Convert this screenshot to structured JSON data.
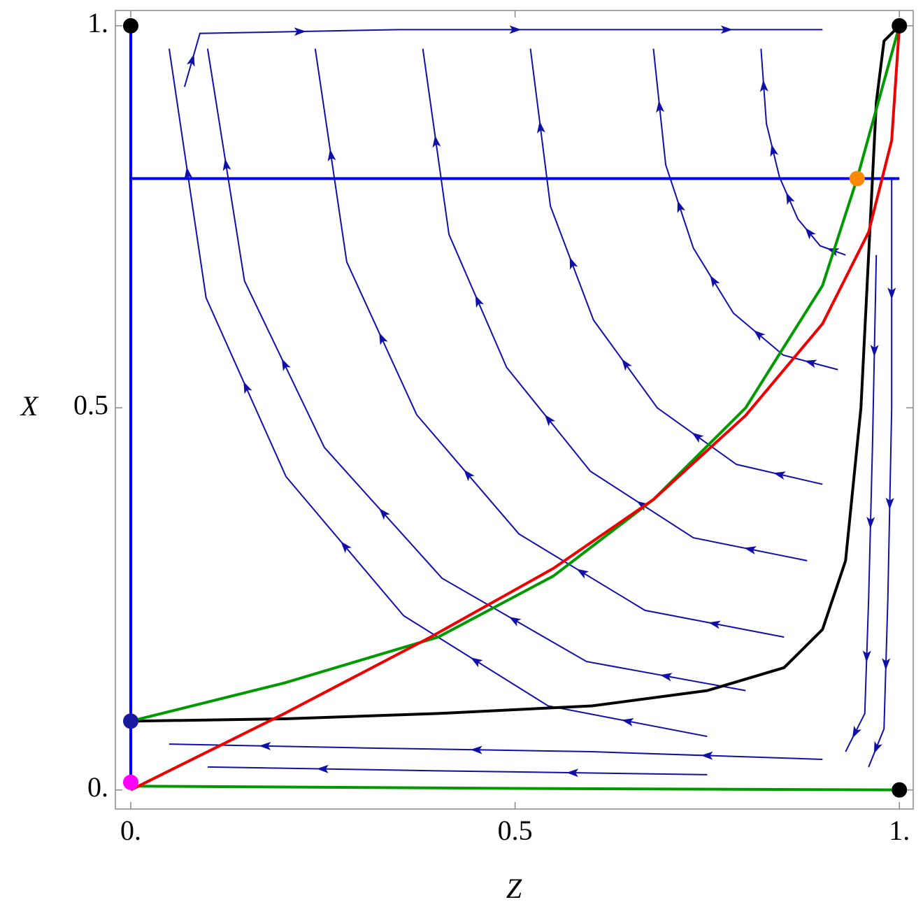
{
  "chart_data": {
    "type": "line",
    "xlabel": "Z",
    "ylabel": "X",
    "xlim": [
      -0.02,
      1.018
    ],
    "ylim": [
      -0.025,
      1.02
    ],
    "xticks": [
      {
        "value": 0,
        "label": "0."
      },
      0.5,
      {
        "value": 1,
        "label": "1."
      }
    ],
    "yticks": [
      {
        "value": 0,
        "label": "0."
      },
      0.5,
      {
        "value": 1,
        "label": "1."
      }
    ],
    "streamline_color": "#1010a8",
    "streamlines": [
      {
        "x": [
          0.93,
          0.897,
          0.868,
          0.844,
          0.827,
          0.82
        ],
        "values": [
          0.7,
          0.712,
          0.747,
          0.802,
          0.872,
          0.97
        ]
      },
      {
        "x": [
          0.92,
          0.849,
          0.784,
          0.732,
          0.696,
          0.68
        ],
        "values": [
          0.55,
          0.569,
          0.624,
          0.709,
          0.818,
          0.97
        ]
      },
      {
        "x": [
          0.9,
          0.788,
          0.685,
          0.602,
          0.546,
          0.52
        ],
        "values": [
          0.4,
          0.426,
          0.5,
          0.615,
          0.764,
          0.97
        ]
      },
      {
        "x": [
          0.88,
          0.732,
          0.598,
          0.489,
          0.414,
          0.38
        ],
        "values": [
          0.3,
          0.33,
          0.417,
          0.553,
          0.727,
          0.97
        ]
      },
      {
        "x": [
          0.85,
          0.669,
          0.505,
          0.372,
          0.281,
          0.24
        ],
        "values": [
          0.2,
          0.235,
          0.335,
          0.491,
          0.691,
          0.97
        ]
      },
      {
        "x": [
          0.8,
          0.593,
          0.405,
          0.252,
          0.148,
          0.1
        ],
        "values": [
          0.13,
          0.168,
          0.277,
          0.448,
          0.666,
          0.97
        ]
      },
      {
        "x": [
          0.75,
          0.543,
          0.355,
          0.202,
          0.098,
          0.05
        ],
        "values": [
          0.07,
          0.11,
          0.228,
          0.41,
          0.644,
          0.97
        ]
      },
      {
        "x": [
          0.9,
          0.6,
          0.3,
          0.05
        ],
        "values": [
          0.04,
          0.05,
          0.055,
          0.06
        ]
      },
      {
        "x": [
          0.75,
          0.4,
          0.1
        ],
        "values": [
          0.02,
          0.025,
          0.03
        ]
      },
      {
        "x": [
          0.97,
          0.965,
          0.96,
          0.955,
          0.93
        ],
        "values": [
          0.7,
          0.45,
          0.25,
          0.1,
          0.05
        ]
      },
      {
        "x": [
          0.99,
          0.99,
          0.985,
          0.98,
          0.96
        ],
        "values": [
          0.8,
          0.5,
          0.25,
          0.08,
          0.03
        ]
      },
      {
        "x": [
          0.07,
          0.09,
          0.35,
          0.65,
          0.9
        ],
        "values": [
          0.92,
          0.99,
          0.995,
          0.995,
          0.995
        ]
      }
    ],
    "curves": [
      {
        "color": "#0000ff",
        "x": [
          0,
          1
        ],
        "values": [
          0.8,
          0.8
        ]
      },
      {
        "color": "#0000ff",
        "x": [
          0,
          0
        ],
        "values": [
          0,
          1
        ]
      },
      {
        "color": "#000000",
        "x": [
          0,
          0.2,
          0.4,
          0.6,
          0.75,
          0.85,
          0.9,
          0.93,
          0.95,
          0.96,
          0.97,
          0.98,
          1
        ],
        "values": [
          0.09,
          0.093,
          0.1,
          0.11,
          0.13,
          0.16,
          0.21,
          0.3,
          0.5,
          0.7,
          0.9,
          0.98,
          1
        ]
      },
      {
        "color": "#009900",
        "x": [
          0,
          0.2,
          0.4,
          0.55,
          0.68,
          0.8,
          0.9,
          0.945,
          1
        ],
        "values": [
          0.09,
          0.14,
          0.2,
          0.28,
          0.38,
          0.5,
          0.66,
          0.8,
          1
        ]
      },
      {
        "color": "#009900",
        "x": [
          0,
          0.5,
          1
        ],
        "values": [
          0.005,
          0.002,
          0
        ]
      },
      {
        "color": "#ee0000",
        "x": [
          0,
          0.2,
          0.39,
          0.55,
          0.68,
          0.8,
          0.9,
          0.96,
          0.99,
          1
        ],
        "values": [
          0,
          0.1,
          0.2,
          0.29,
          0.38,
          0.49,
          0.61,
          0.73,
          0.85,
          1
        ]
      }
    ],
    "points": {
      "x": [
        0,
        1,
        1,
        0,
        0,
        0.945
      ],
      "values": [
        1,
        1,
        0,
        0.09,
        0.01,
        0.8
      ],
      "colors": [
        "#000000",
        "#000000",
        "#000000",
        "#1a1aa0",
        "#ff00ff",
        "#ff8800"
      ]
    }
  }
}
